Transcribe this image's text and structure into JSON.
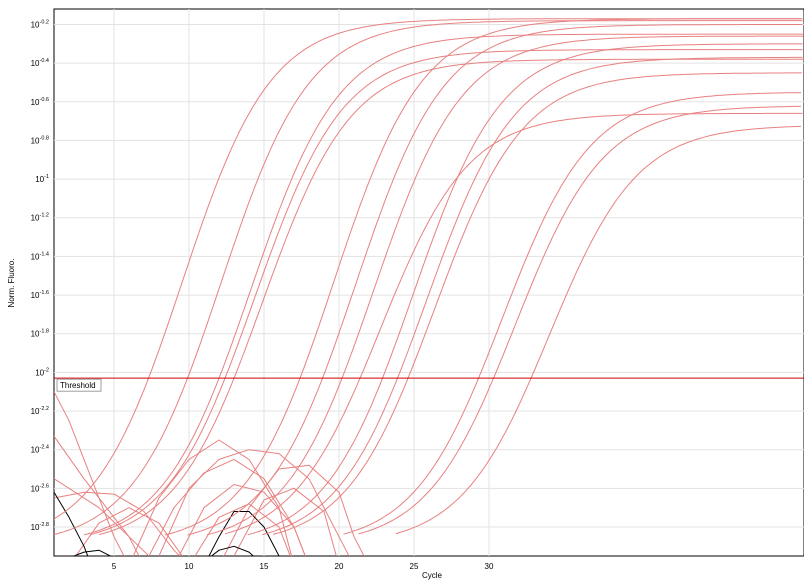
{
  "chart_data": {
    "type": "line",
    "xlabel": "Cycle",
    "ylabel": "Norm. Fluoro.",
    "xlim": [
      1,
      51
    ],
    "ylim_log10": [
      -2.95,
      -0.12
    ],
    "x_scale": "linear",
    "y_scale": "log",
    "grid": true,
    "x_ticks": [
      {
        "value": 5,
        "label": "5"
      },
      {
        "value": 10,
        "label": "10"
      },
      {
        "value": 15,
        "label": "15"
      },
      {
        "value": 20,
        "label": "20"
      },
      {
        "value": 25,
        "label": "25"
      },
      {
        "value": 30,
        "label": "30"
      }
    ],
    "y_ticks": [
      {
        "value": -0.2,
        "base": "10",
        "exp": "-0.2"
      },
      {
        "value": -0.4,
        "base": "10",
        "exp": "-0.4"
      },
      {
        "value": -0.6,
        "base": "10",
        "exp": "-0.6"
      },
      {
        "value": -0.8,
        "base": "10",
        "exp": "-0.8"
      },
      {
        "value": -1.0,
        "base": "10",
        "exp": "-1"
      },
      {
        "value": -1.2,
        "base": "10",
        "exp": "-1.2"
      },
      {
        "value": -1.4,
        "base": "10",
        "exp": "-1.4"
      },
      {
        "value": -1.6,
        "base": "10",
        "exp": "-1.6"
      },
      {
        "value": -1.8,
        "base": "10",
        "exp": "-1.8"
      },
      {
        "value": -2.0,
        "base": "10",
        "exp": "-2"
      },
      {
        "value": -2.2,
        "base": "10",
        "exp": "-2.2"
      },
      {
        "value": -2.4,
        "base": "10",
        "exp": "-2.4"
      },
      {
        "value": -2.6,
        "base": "10",
        "exp": "-2.6"
      },
      {
        "value": -2.8,
        "base": "10",
        "exp": "-2.8"
      }
    ],
    "threshold": {
      "label": "Threshold",
      "value_log10": -2.03,
      "color": "#cc0000"
    },
    "colors": {
      "sample": "#e88080",
      "negative": "#000000"
    },
    "amplification_curves": [
      {
        "ct": 7.3,
        "plateau": -0.17,
        "base": -2.9
      },
      {
        "ct": 9.9,
        "plateau": -0.18,
        "base": -2.9
      },
      {
        "ct": 12.0,
        "plateau": -0.25,
        "base": -2.9
      },
      {
        "ct": 12.4,
        "plateau": -0.33,
        "base": -2.9
      },
      {
        "ct": 13.0,
        "plateau": -0.38,
        "base": -2.9
      },
      {
        "ct": 17.4,
        "plateau": -0.17,
        "base": -2.9
      },
      {
        "ct": 18.9,
        "plateau": -0.2,
        "base": -2.9
      },
      {
        "ct": 20.2,
        "plateau": -0.26,
        "base": -2.9
      },
      {
        "ct": 21.4,
        "plateau": -0.66,
        "base": -2.9
      },
      {
        "ct": 22.9,
        "plateau": -0.3,
        "base": -2.9
      },
      {
        "ct": 23.9,
        "plateau": -0.37,
        "base": -2.9
      },
      {
        "ct": 24.6,
        "plateau": -0.45,
        "base": -2.9
      },
      {
        "ct": 29.3,
        "plateau": -0.55,
        "base": -2.9
      },
      {
        "ct": 30.3,
        "plateau": -0.62,
        "base": -2.9
      },
      {
        "ct": 32.8,
        "plateau": -0.72,
        "base": -2.9
      }
    ],
    "baseline_curves": [
      {
        "color": "sample",
        "points": [
          [
            1,
            -2.1
          ],
          [
            2,
            -2.25
          ],
          [
            3,
            -2.45
          ],
          [
            4,
            -2.65
          ],
          [
            5,
            -2.85
          ],
          [
            6,
            -3.0
          ]
        ]
      },
      {
        "color": "sample",
        "points": [
          [
            1,
            -2.33
          ],
          [
            3,
            -2.55
          ],
          [
            5,
            -2.75
          ],
          [
            6,
            -2.85
          ],
          [
            7,
            -3.0
          ]
        ]
      },
      {
        "color": "sample",
        "points": [
          [
            1,
            -2.55
          ],
          [
            4,
            -2.7
          ],
          [
            6,
            -2.85
          ],
          [
            8,
            -3.0
          ]
        ]
      },
      {
        "color": "sample",
        "points": [
          [
            1,
            -2.65
          ],
          [
            3,
            -2.62
          ],
          [
            5,
            -2.63
          ],
          [
            7,
            -2.72
          ],
          [
            9,
            -2.92
          ],
          [
            10,
            -3.0
          ]
        ]
      },
      {
        "color": "sample",
        "points": [
          [
            6,
            -3.0
          ],
          [
            8,
            -2.65
          ],
          [
            10,
            -2.45
          ],
          [
            12,
            -2.35
          ],
          [
            14,
            -2.45
          ],
          [
            16,
            -2.7
          ],
          [
            17,
            -3.0
          ]
        ]
      },
      {
        "color": "sample",
        "points": [
          [
            7,
            -3.0
          ],
          [
            9,
            -2.7
          ],
          [
            11,
            -2.52
          ],
          [
            13,
            -2.45
          ],
          [
            15,
            -2.55
          ],
          [
            17,
            -2.8
          ],
          [
            18,
            -3.0
          ]
        ]
      },
      {
        "color": "sample",
        "points": [
          [
            8,
            -2.95
          ],
          [
            10,
            -2.6
          ],
          [
            12,
            -2.45
          ],
          [
            14,
            -2.4
          ],
          [
            16,
            -2.42
          ],
          [
            18,
            -2.55
          ],
          [
            20,
            -2.85
          ],
          [
            21,
            -3.0
          ]
        ]
      },
      {
        "color": "sample",
        "points": [
          [
            9,
            -3.0
          ],
          [
            11,
            -2.7
          ],
          [
            13,
            -2.58
          ],
          [
            15,
            -2.62
          ],
          [
            17,
            -2.8
          ],
          [
            18,
            -3.0
          ]
        ]
      },
      {
        "color": "sample",
        "points": [
          [
            12,
            -3.0
          ],
          [
            14,
            -2.7
          ],
          [
            16,
            -2.5
          ],
          [
            18,
            -2.48
          ],
          [
            20,
            -2.62
          ],
          [
            21,
            -2.85
          ],
          [
            22,
            -3.0
          ]
        ]
      },
      {
        "color": "sample",
        "points": [
          [
            13,
            -2.95
          ],
          [
            15,
            -2.66
          ],
          [
            17,
            -2.6
          ],
          [
            19,
            -2.72
          ],
          [
            20,
            -3.0
          ]
        ]
      },
      {
        "color": "sample",
        "points": [
          [
            2,
            -3.0
          ],
          [
            4,
            -2.78
          ],
          [
            6,
            -2.7
          ],
          [
            8,
            -2.78
          ],
          [
            10,
            -3.0
          ]
        ]
      },
      {
        "color": "sample",
        "points": [
          [
            10,
            -3.0
          ],
          [
            12,
            -2.75
          ],
          [
            14,
            -2.68
          ],
          [
            16,
            -2.8
          ],
          [
            17,
            -3.0
          ]
        ]
      },
      {
        "color": "negative",
        "points": [
          [
            1,
            -2.62
          ],
          [
            2,
            -2.75
          ],
          [
            3,
            -2.9
          ],
          [
            3.5,
            -3.0
          ]
        ]
      },
      {
        "color": "negative",
        "points": [
          [
            1,
            -2.98
          ],
          [
            2,
            -2.96
          ],
          [
            3,
            -2.93
          ],
          [
            4,
            -2.92
          ],
          [
            5,
            -2.96
          ],
          [
            6,
            -3.0
          ]
        ]
      },
      {
        "color": "negative",
        "points": [
          [
            11,
            -3.0
          ],
          [
            12,
            -2.85
          ],
          [
            13,
            -2.72
          ],
          [
            14,
            -2.72
          ],
          [
            15,
            -2.8
          ],
          [
            16,
            -2.95
          ],
          [
            17,
            -3.0
          ]
        ]
      },
      {
        "color": "negative",
        "points": [
          [
            11,
            -2.98
          ],
          [
            12,
            -2.92
          ],
          [
            13,
            -2.9
          ],
          [
            14,
            -2.93
          ],
          [
            15,
            -3.0
          ]
        ]
      }
    ]
  }
}
